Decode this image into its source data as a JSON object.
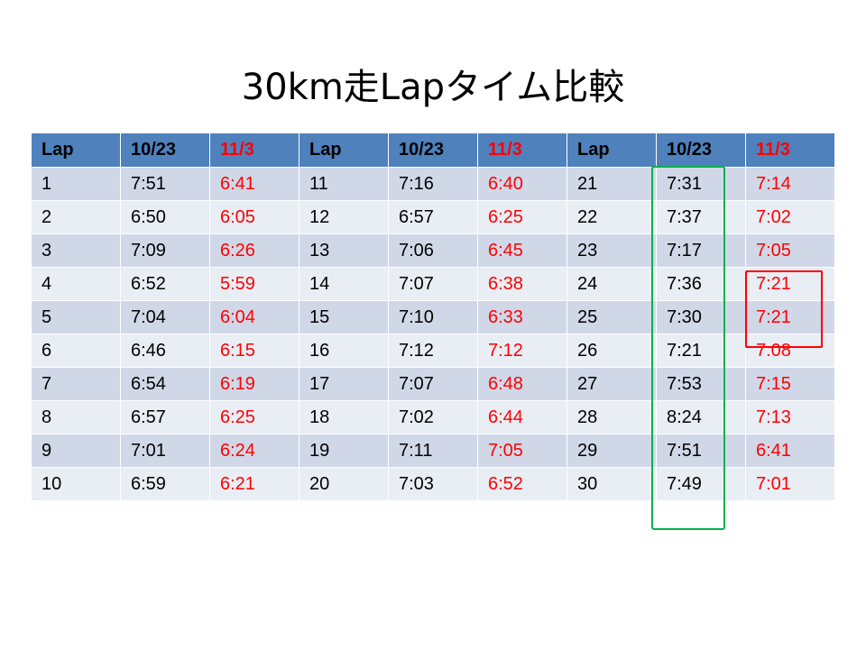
{
  "title": "30km走Lapタイム比較",
  "table": {
    "headers": [
      "Lap",
      "10/23",
      "11/3",
      "Lap",
      "10/23",
      "11/3",
      "Lap",
      "10/23",
      "11/3"
    ],
    "rows": [
      [
        "1",
        "7:51",
        "6:41",
        "11",
        "7:16",
        "6:40",
        "21",
        "7:31",
        "7:14"
      ],
      [
        "2",
        "6:50",
        "6:05",
        "12",
        "6:57",
        "6:25",
        "22",
        "7:37",
        "7:02"
      ],
      [
        "3",
        "7:09",
        "6:26",
        "13",
        "7:06",
        "6:45",
        "23",
        "7:17",
        "7:05"
      ],
      [
        "4",
        "6:52",
        "5:59",
        "14",
        "7:07",
        "6:38",
        "24",
        "7:36",
        "7:21"
      ],
      [
        "5",
        "7:04",
        "6:04",
        "15",
        "7:10",
        "6:33",
        "25",
        "7:30",
        "7:21"
      ],
      [
        "6",
        "6:46",
        "6:15",
        "16",
        "7:12",
        "7:12",
        "26",
        "7:21",
        "7:08"
      ],
      [
        "7",
        "6:54",
        "6:19",
        "17",
        "7:07",
        "6:48",
        "27",
        "7:53",
        "7:15"
      ],
      [
        "8",
        "6:57",
        "6:25",
        "18",
        "7:02",
        "6:44",
        "28",
        "8:24",
        "7:13"
      ],
      [
        "9",
        "7:01",
        "6:24",
        "19",
        "7:11",
        "7:05",
        "29",
        "7:51",
        "6:41"
      ],
      [
        "10",
        "6:59",
        "6:21",
        "20",
        "7:03",
        "6:52",
        "30",
        "7:49",
        "7:01"
      ]
    ]
  },
  "colors": {
    "header_bg": "#4f81bd",
    "row_dark": "#d0d8e8",
    "row_light": "#e9edf4",
    "highlight_text": "#ff0000",
    "green_box": "#00b050",
    "red_box": "#ff0000"
  }
}
